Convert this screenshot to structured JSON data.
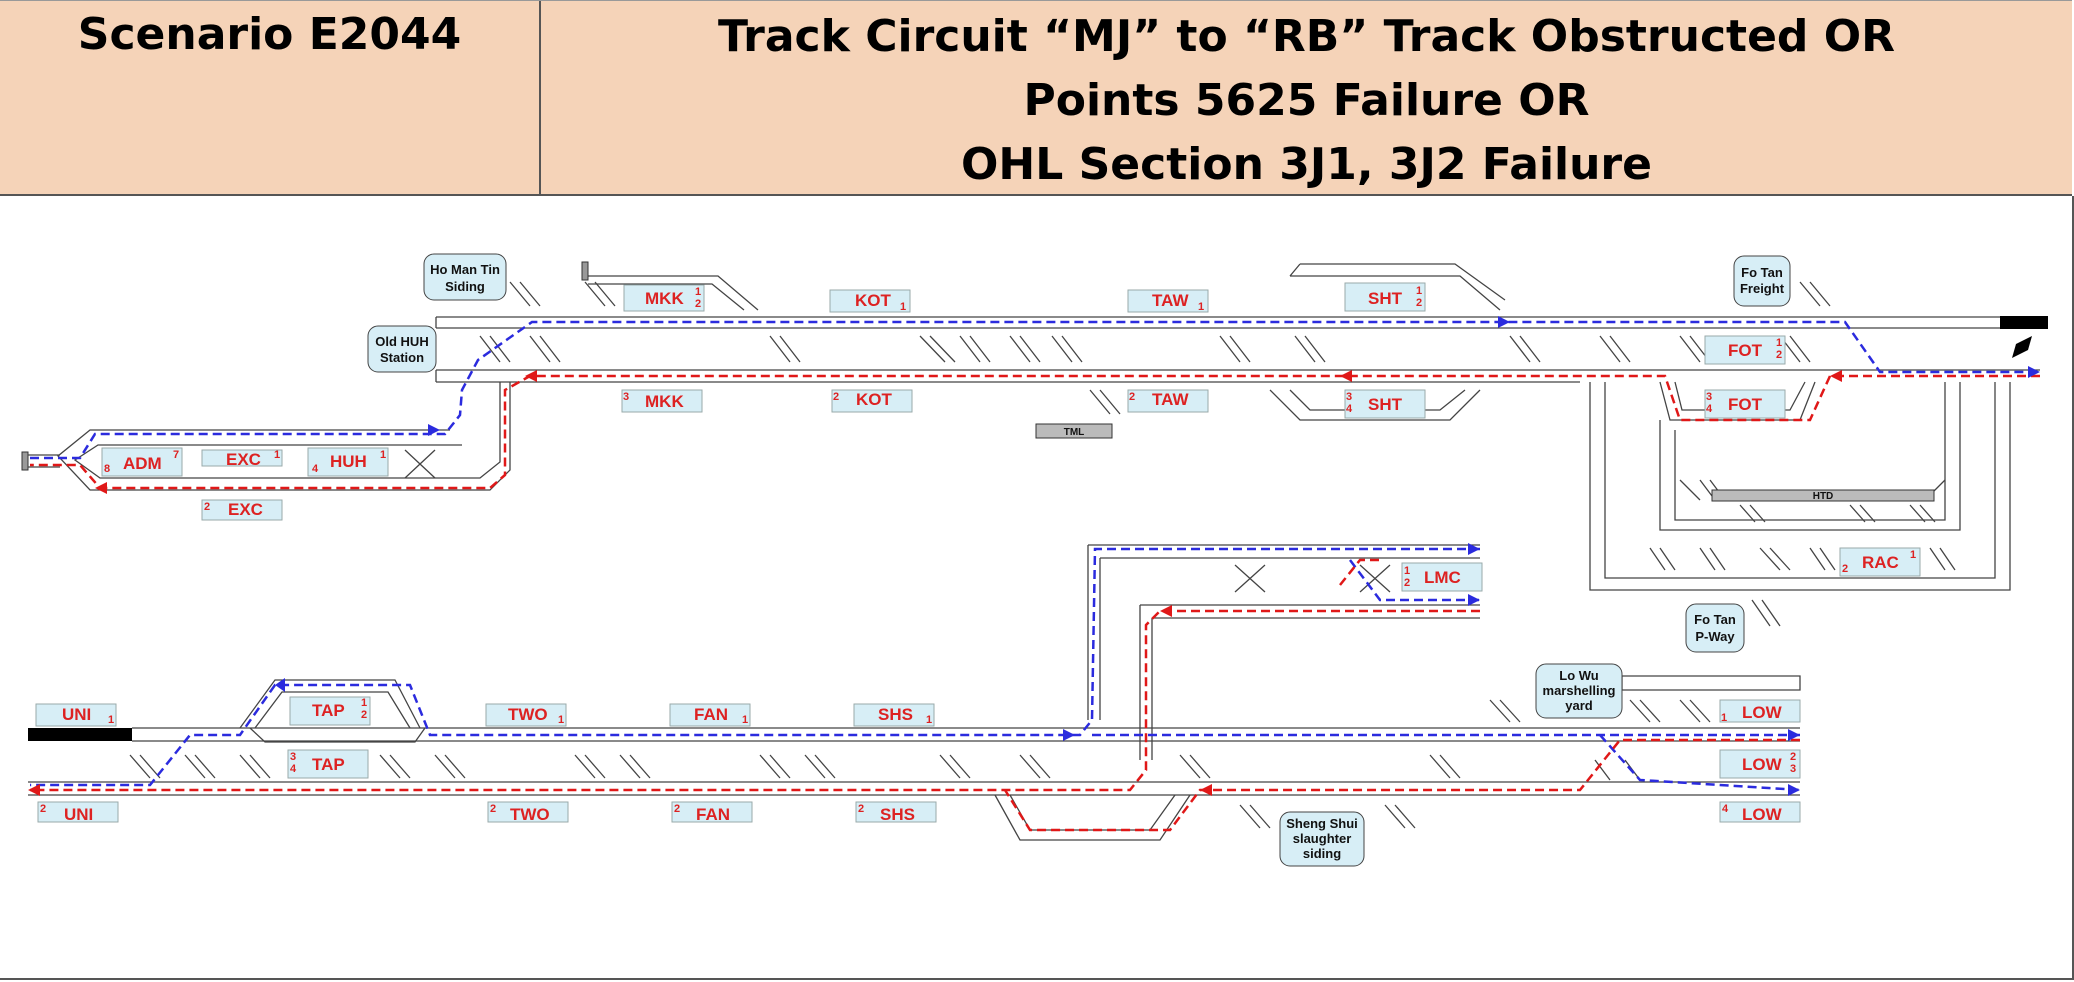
{
  "header": {
    "scenario": "Scenario E2044",
    "description": [
      "Track Circuit “MJ” to “RB” Track Obstructed OR",
      "Points 5625 Failure OR",
      "OHL Section 3J1, 3J2 Failure"
    ]
  },
  "stations": [
    {
      "name": "MKK",
      "tracks": [
        "1",
        "2"
      ],
      "position": "upper-up"
    },
    {
      "name": "KOT",
      "tracks": [
        "1"
      ],
      "position": "upper-up"
    },
    {
      "name": "TAW",
      "tracks": [
        "1"
      ],
      "position": "upper-up"
    },
    {
      "name": "SHT",
      "tracks": [
        "1",
        "2"
      ],
      "position": "upper-up"
    },
    {
      "name": "FOT",
      "tracks": [
        "1",
        "2"
      ],
      "position": "upper-up"
    },
    {
      "name": "MKK",
      "tracks": [
        "3"
      ],
      "position": "upper-down"
    },
    {
      "name": "KOT",
      "tracks": [
        "2"
      ],
      "position": "upper-down"
    },
    {
      "name": "TAW",
      "tracks": [
        "2"
      ],
      "position": "upper-down"
    },
    {
      "name": "SHT",
      "tracks": [
        "3",
        "4"
      ],
      "position": "upper-down"
    },
    {
      "name": "FOT",
      "tracks": [
        "3",
        "4"
      ],
      "position": "upper-down"
    },
    {
      "name": "ADM",
      "tracks": [
        "8",
        "7"
      ],
      "position": "left-branch"
    },
    {
      "name": "EXC",
      "tracks": [
        "1"
      ],
      "position": "left-branch"
    },
    {
      "name": "HUH",
      "tracks": [
        "4",
        "1"
      ],
      "position": "left-branch"
    },
    {
      "name": "EXC",
      "tracks": [
        "2"
      ],
      "position": "left-branch-down"
    },
    {
      "name": "RAC",
      "tracks": [
        "2",
        "1"
      ],
      "position": "racecourse"
    },
    {
      "name": "LMC",
      "tracks": [
        "1",
        "2"
      ],
      "position": "lok-ma-chau"
    },
    {
      "name": "UNI",
      "tracks": [
        "1"
      ],
      "position": "lower-up"
    },
    {
      "name": "TAP",
      "tracks": [
        "1",
        "2"
      ],
      "position": "lower-up"
    },
    {
      "name": "TWO",
      "tracks": [
        "1"
      ],
      "position": "lower-up"
    },
    {
      "name": "FAN",
      "tracks": [
        "1"
      ],
      "position": "lower-up"
    },
    {
      "name": "SHS",
      "tracks": [
        "1"
      ],
      "position": "lower-up"
    },
    {
      "name": "LOW",
      "tracks": [
        "1"
      ],
      "position": "lower-up"
    },
    {
      "name": "TAP",
      "tracks": [
        "3",
        "4"
      ],
      "position": "lower-middle"
    },
    {
      "name": "LOW",
      "tracks": [
        "2",
        "3"
      ],
      "position": "lower-middle"
    },
    {
      "name": "UNI",
      "tracks": [
        "2"
      ],
      "position": "lower-down"
    },
    {
      "name": "TWO",
      "tracks": [
        "2"
      ],
      "position": "lower-down"
    },
    {
      "name": "FAN",
      "tracks": [
        "2"
      ],
      "position": "lower-down"
    },
    {
      "name": "SHS",
      "tracks": [
        "2"
      ],
      "position": "lower-down"
    },
    {
      "name": "LOW",
      "tracks": [
        "4"
      ],
      "position": "lower-down"
    }
  ],
  "bubbles": [
    {
      "lines": [
        "Ho Man Tin",
        "Siding"
      ]
    },
    {
      "lines": [
        "Old HUH",
        "Station"
      ]
    },
    {
      "lines": [
        "Fo Tan",
        "Freight"
      ]
    },
    {
      "lines": [
        "Fo Tan",
        "P-Way"
      ]
    },
    {
      "lines": [
        "Lo Wu",
        "marshelling",
        "yard"
      ]
    },
    {
      "lines": [
        "Sheng Shui",
        "slaughter",
        "siding"
      ]
    }
  ],
  "depots": [
    {
      "name": "TML"
    },
    {
      "name": "HTD"
    }
  ],
  "colors": {
    "header_bg": "#f5d3b8",
    "label_bg": "#d7eef6",
    "label_text": "#dd2222",
    "blue_route": "#2b2bde",
    "red_route": "#e01818"
  }
}
